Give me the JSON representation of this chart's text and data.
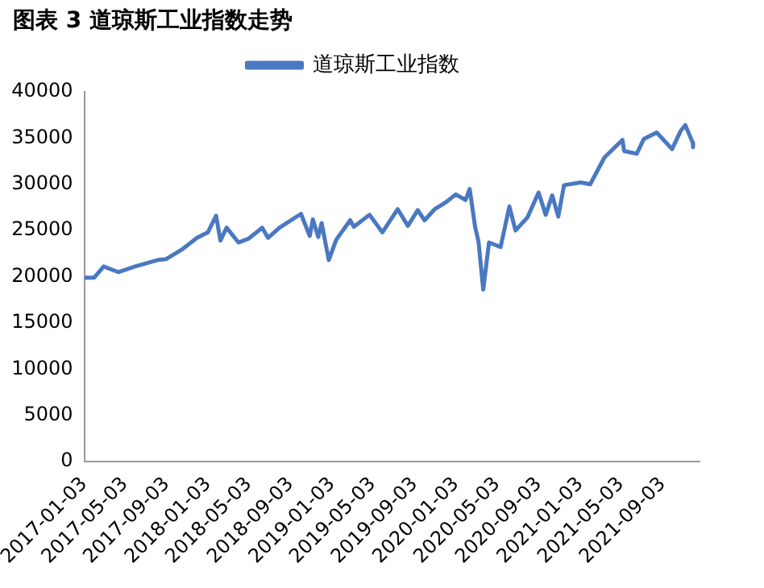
{
  "chart_data": {
    "type": "line",
    "title": "图表 3 道琼斯工业指数走势",
    "series": [
      {
        "name": "道琼斯工业指数",
        "color": "#4a78c2",
        "x": [
          "2017-01-03",
          "2017-02-01",
          "2017-03-01",
          "2017-04-13",
          "2017-06-01",
          "2017-08-07",
          "2017-09-01",
          "2017-10-16",
          "2017-12-01",
          "2018-01-02",
          "2018-01-26",
          "2018-02-08",
          "2018-02-26",
          "2018-04-02",
          "2018-05-01",
          "2018-06-11",
          "2018-06-28",
          "2018-08-01",
          "2018-10-03",
          "2018-10-29",
          "2018-11-07",
          "2018-11-23",
          "2018-12-03",
          "2018-12-24",
          "2019-01-15",
          "2019-02-25",
          "2019-03-08",
          "2019-04-23",
          "2019-05-31",
          "2019-07-15",
          "2019-08-14",
          "2019-09-12",
          "2019-10-02",
          "2019-11-01",
          "2019-12-02",
          "2020-01-02",
          "2020-01-31",
          "2020-02-12",
          "2020-02-28",
          "2020-03-09",
          "2020-03-23",
          "2020-04-09",
          "2020-05-13",
          "2020-06-08",
          "2020-06-26",
          "2020-07-31",
          "2020-09-02",
          "2020-09-23",
          "2020-10-12",
          "2020-10-30",
          "2020-11-16",
          "2021-01-04",
          "2021-02-01",
          "2021-03-15",
          "2021-05-07",
          "2021-05-12",
          "2021-06-18",
          "2021-07-09",
          "2021-08-16",
          "2021-09-30",
          "2021-10-26",
          "2021-11-08",
          "2021-11-30",
          "2021-12-01"
        ],
        "values": [
          19900,
          19900,
          21100,
          20500,
          21100,
          21800,
          21900,
          22900,
          24200,
          24800,
          26600,
          23900,
          25300,
          23700,
          24100,
          25300,
          24200,
          25300,
          26800,
          24400,
          26200,
          24300,
          25800,
          21800,
          24000,
          26100,
          25400,
          26700,
          24800,
          27300,
          25500,
          27200,
          26100,
          27300,
          28000,
          28900,
          28300,
          29500,
          25400,
          23800,
          18600,
          23700,
          23200,
          27600,
          25000,
          26400,
          29100,
          26700,
          28800,
          26500,
          29900,
          30200,
          30000,
          32900,
          34800,
          33600,
          33300,
          34900,
          35600,
          33800,
          35800,
          36400,
          34500,
          34000
        ]
      }
    ],
    "xlim": [
      "2017-01-03",
      "2021-12-20"
    ],
    "xticks": [
      "2017-01-03",
      "2017-05-03",
      "2017-09-03",
      "2018-01-03",
      "2018-05-03",
      "2018-09-03",
      "2019-01-03",
      "2019-05-03",
      "2019-09-03",
      "2020-01-03",
      "2020-05-03",
      "2020-09-03",
      "2021-01-03",
      "2021-05-03",
      "2021-09-03"
    ],
    "ylim": [
      0,
      40000
    ],
    "yticks": [
      0,
      5000,
      10000,
      15000,
      20000,
      25000,
      30000,
      35000,
      40000
    ],
    "grid": false,
    "legend": "top",
    "marker": "none",
    "line_style": "solid"
  }
}
